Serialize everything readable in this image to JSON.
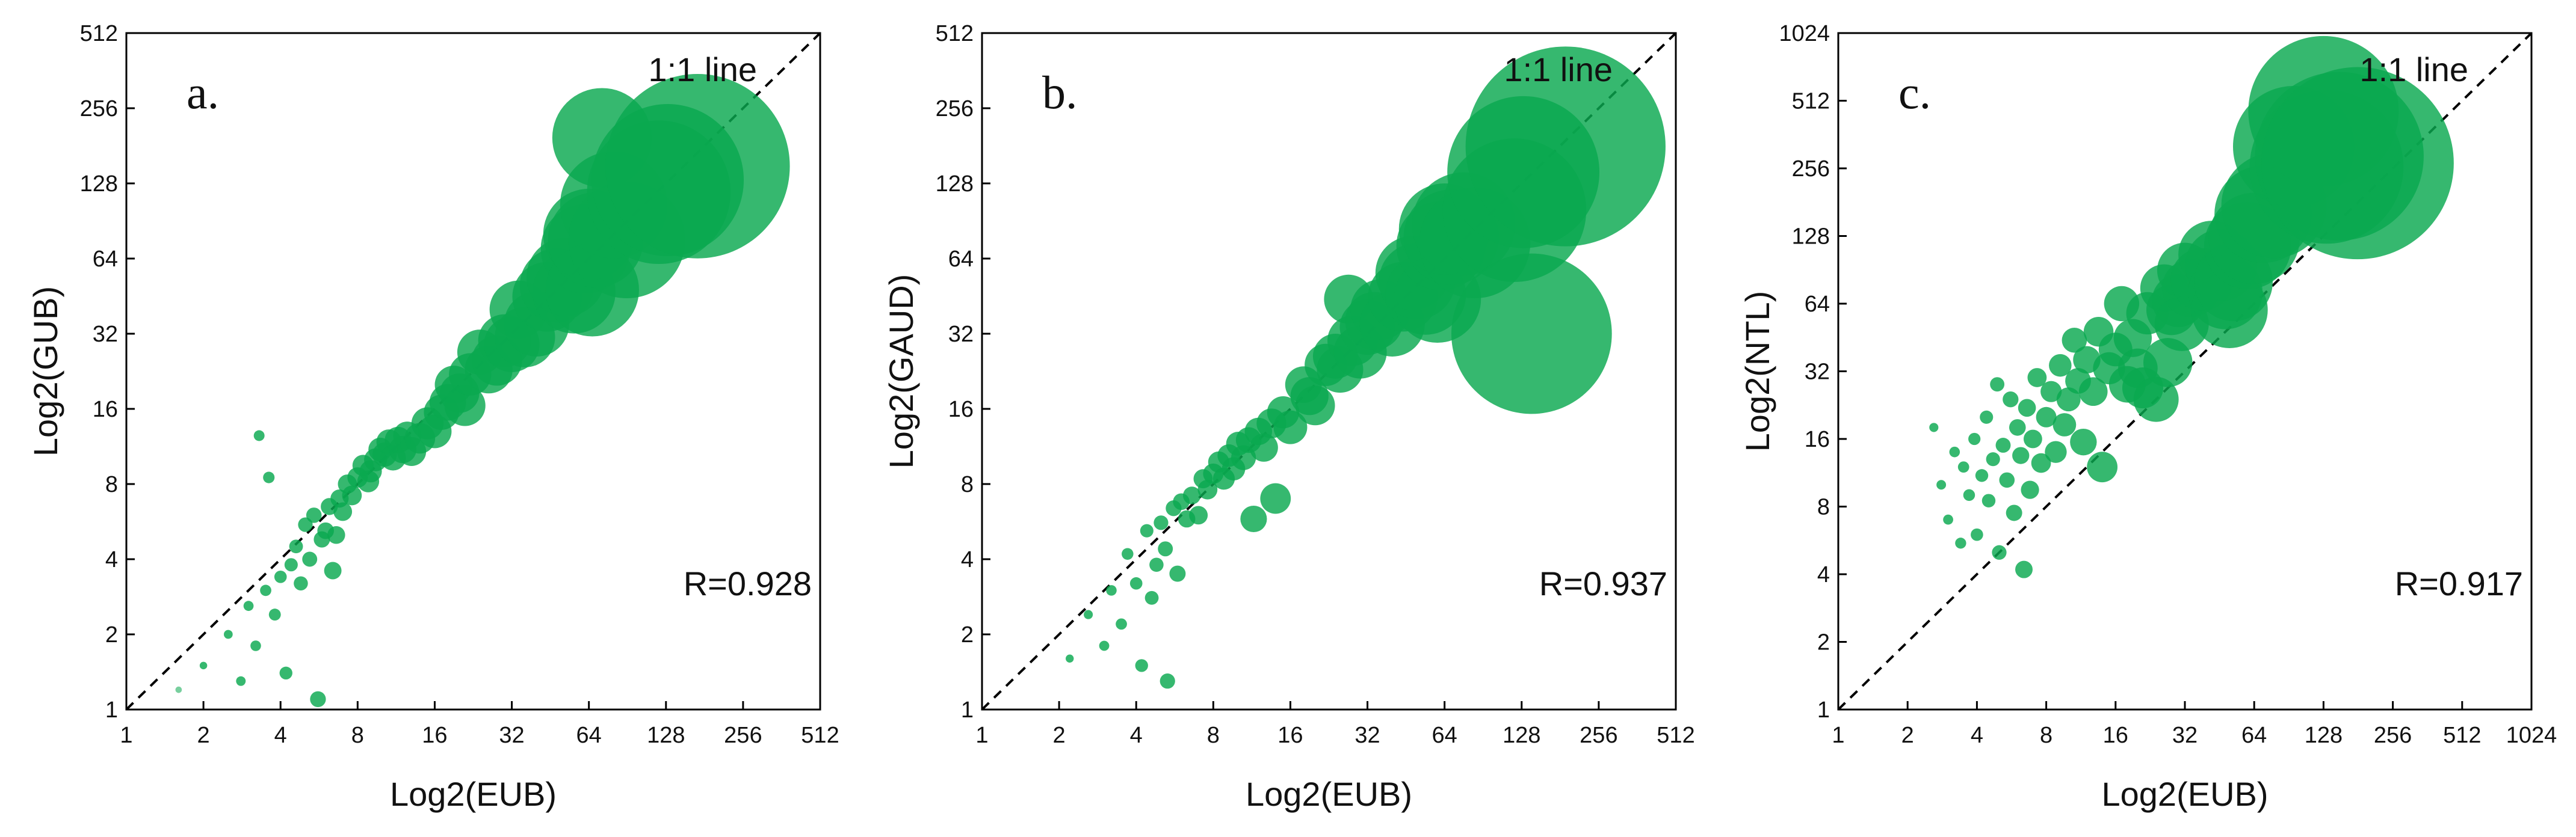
{
  "colors": {
    "point": "#0aa84f",
    "axis": "#000000",
    "ref_line": "#000000",
    "background": "#ffffff"
  },
  "chart_data": [
    {
      "type": "scatter",
      "panel_label": "a.",
      "title": "",
      "xlabel": "Log2(EUB)",
      "ylabel": "Log2(GUB)",
      "xscale": "log2",
      "yscale": "log2",
      "xlim": [
        1,
        512
      ],
      "ylim": [
        1,
        512
      ],
      "xticks": [
        "1",
        "2",
        "4",
        "8",
        "16",
        "32",
        "64",
        "128",
        "256",
        "512"
      ],
      "yticks": [
        "1",
        "2",
        "4",
        "8",
        "16",
        "32",
        "64",
        "128",
        "256",
        "512"
      ],
      "reference_line_label": "1:1 line",
      "correlation_text": "R=0.928",
      "point_size_encodes": "EUB",
      "points": [
        [
          1.6,
          1.2
        ],
        [
          2.0,
          1.5
        ],
        [
          2.5,
          2.0
        ],
        [
          2.8,
          1.3
        ],
        [
          3.0,
          2.6
        ],
        [
          3.3,
          12.5
        ],
        [
          3.2,
          1.8
        ],
        [
          3.5,
          3.0
        ],
        [
          3.6,
          8.5
        ],
        [
          3.8,
          2.4
        ],
        [
          4.0,
          3.4
        ],
        [
          4.2,
          1.4
        ],
        [
          4.4,
          3.8
        ],
        [
          4.6,
          4.5
        ],
        [
          4.8,
          3.2
        ],
        [
          5.0,
          5.5
        ],
        [
          5.2,
          4.0
        ],
        [
          5.4,
          6.0
        ],
        [
          5.6,
          1.1
        ],
        [
          5.8,
          4.8
        ],
        [
          6.0,
          5.2
        ],
        [
          6.2,
          6.5
        ],
        [
          6.4,
          3.6
        ],
        [
          6.6,
          5.0
        ],
        [
          6.8,
          7.0
        ],
        [
          7.0,
          6.2
        ],
        [
          7.3,
          8.0
        ],
        [
          7.6,
          7.2
        ],
        [
          8.0,
          8.5
        ],
        [
          8.4,
          9.5
        ],
        [
          8.8,
          8.2
        ],
        [
          9.0,
          9.0
        ],
        [
          9.4,
          10.0
        ],
        [
          9.8,
          11.0
        ],
        [
          10.2,
          10.5
        ],
        [
          10.6,
          11.8
        ],
        [
          11.0,
          10.2
        ],
        [
          11.5,
          12.0
        ],
        [
          12.0,
          11.0
        ],
        [
          12.5,
          12.5
        ],
        [
          13.0,
          10.8
        ],
        [
          14.0,
          12.2
        ],
        [
          15.0,
          14.0
        ],
        [
          16.0,
          13.0
        ],
        [
          17.0,
          15.5
        ],
        [
          18.0,
          17.0
        ],
        [
          19.0,
          20.0
        ],
        [
          20.0,
          18.5
        ],
        [
          21.0,
          16.5
        ],
        [
          22.0,
          22.0
        ],
        [
          24.0,
          27.0
        ],
        [
          26.0,
          23.0
        ],
        [
          28.0,
          25.0
        ],
        [
          30.0,
          30.0
        ],
        [
          32.0,
          29.0
        ],
        [
          34.0,
          40.0
        ],
        [
          36.0,
          31.0
        ],
        [
          40.0,
          35.0
        ],
        [
          44.0,
          45.0
        ],
        [
          48.0,
          50.0
        ],
        [
          52.0,
          54.0
        ],
        [
          56.0,
          47.0
        ],
        [
          62.0,
          70.0
        ],
        [
          64.0,
          80.0
        ],
        [
          66.0,
          48.0
        ],
        [
          68.0,
          76.0
        ],
        [
          72.0,
          195.0
        ],
        [
          80.0,
          105.0
        ],
        [
          90.0,
          76.0
        ],
        [
          120.0,
          118.0
        ],
        [
          130.0,
          132.0
        ],
        [
          170.0,
          150.0
        ]
      ]
    },
    {
      "type": "scatter",
      "panel_label": "b.",
      "title": "",
      "xlabel": "Log2(EUB)",
      "ylabel": "Log2(GAUD)",
      "xscale": "log2",
      "yscale": "log2",
      "xlim": [
        1,
        512
      ],
      "ylim": [
        1,
        512
      ],
      "xticks": [
        "1",
        "2",
        "4",
        "8",
        "16",
        "32",
        "64",
        "128",
        "256",
        "512"
      ],
      "yticks": [
        "1",
        "2",
        "4",
        "8",
        "16",
        "32",
        "64",
        "128",
        "256",
        "512"
      ],
      "reference_line_label": "1:1 line",
      "correlation_text": "R=0.937",
      "point_size_encodes": "EUB",
      "points": [
        [
          2.2,
          1.6
        ],
        [
          2.6,
          2.4
        ],
        [
          3.0,
          1.8
        ],
        [
          3.2,
          3.0
        ],
        [
          3.5,
          2.2
        ],
        [
          3.7,
          4.2
        ],
        [
          4.0,
          3.2
        ],
        [
          4.2,
          1.5
        ],
        [
          4.4,
          5.2
        ],
        [
          4.6,
          2.8
        ],
        [
          4.8,
          3.8
        ],
        [
          5.0,
          5.6
        ],
        [
          5.2,
          4.4
        ],
        [
          5.3,
          1.3
        ],
        [
          5.6,
          6.4
        ],
        [
          5.8,
          3.5
        ],
        [
          6.0,
          6.8
        ],
        [
          6.3,
          5.8
        ],
        [
          6.6,
          7.2
        ],
        [
          7.0,
          6.0
        ],
        [
          7.3,
          8.4
        ],
        [
          7.6,
          7.6
        ],
        [
          8.0,
          8.8
        ],
        [
          8.4,
          9.8
        ],
        [
          8.8,
          8.4
        ],
        [
          9.2,
          10.4
        ],
        [
          9.6,
          9.2
        ],
        [
          10.0,
          11.6
        ],
        [
          10.5,
          10.2
        ],
        [
          11.0,
          12.0
        ],
        [
          11.5,
          5.8
        ],
        [
          12.0,
          13.0
        ],
        [
          12.6,
          11.2
        ],
        [
          13.5,
          14.0
        ],
        [
          14.0,
          7.0
        ],
        [
          15.0,
          15.5
        ],
        [
          16.0,
          13.5
        ],
        [
          18.0,
          20.0
        ],
        [
          19.0,
          18.0
        ],
        [
          20.0,
          16.5
        ],
        [
          22.0,
          24.0
        ],
        [
          24.0,
          26.0
        ],
        [
          25.0,
          23.0
        ],
        [
          27.0,
          44.0
        ],
        [
          28.0,
          30.0
        ],
        [
          30.0,
          27.0
        ],
        [
          32.0,
          34.0
        ],
        [
          34.0,
          36.0
        ],
        [
          36.0,
          40.0
        ],
        [
          40.0,
          35.0
        ],
        [
          44.0,
          45.0
        ],
        [
          48.0,
          56.0
        ],
        [
          50.0,
          52.0
        ],
        [
          54.0,
          46.0
        ],
        [
          60.0,
          44.0
        ],
        [
          62.0,
          72.0
        ],
        [
          64.0,
          84.0
        ],
        [
          68.0,
          78.0
        ],
        [
          76.0,
          88.0
        ],
        [
          84.0,
          74.0
        ],
        [
          120.0,
          100.0
        ],
        [
          130.0,
          142.0
        ],
        [
          140.0,
          32.0
        ],
        [
          190.0,
          180.0
        ]
      ]
    },
    {
      "type": "scatter",
      "panel_label": "c.",
      "title": "",
      "xlabel": "Log2(EUB)",
      "ylabel": "Log2(NTL)",
      "xscale": "log2",
      "yscale": "log2",
      "xlim": [
        1,
        1024
      ],
      "ylim": [
        1,
        1024
      ],
      "xticks": [
        "1",
        "2",
        "4",
        "8",
        "16",
        "32",
        "64",
        "128",
        "256",
        "512",
        "1024"
      ],
      "yticks": [
        "1",
        "2",
        "4",
        "8",
        "16",
        "32",
        "64",
        "128",
        "256",
        "512",
        "1024"
      ],
      "reference_line_label": "1:1 line",
      "correlation_text": "R=0.917",
      "point_size_encodes": "EUB",
      "points": [
        [
          2.6,
          18.0
        ],
        [
          2.8,
          10.0
        ],
        [
          3.0,
          7.0
        ],
        [
          3.2,
          14.0
        ],
        [
          3.4,
          5.5
        ],
        [
          3.5,
          12.0
        ],
        [
          3.7,
          9.0
        ],
        [
          3.9,
          16.0
        ],
        [
          4.0,
          6.0
        ],
        [
          4.2,
          11.0
        ],
        [
          4.4,
          20.0
        ],
        [
          4.5,
          8.5
        ],
        [
          4.7,
          13.0
        ],
        [
          4.9,
          28.0
        ],
        [
          5.0,
          5.0
        ],
        [
          5.2,
          15.0
        ],
        [
          5.4,
          10.5
        ],
        [
          5.6,
          24.0
        ],
        [
          5.8,
          7.5
        ],
        [
          6.0,
          18.0
        ],
        [
          6.2,
          13.5
        ],
        [
          6.4,
          4.2
        ],
        [
          6.6,
          22.0
        ],
        [
          6.8,
          9.5
        ],
        [
          7.0,
          16.0
        ],
        [
          7.3,
          30.0
        ],
        [
          7.6,
          12.5
        ],
        [
          8.0,
          20.0
        ],
        [
          8.4,
          26.0
        ],
        [
          8.8,
          14.0
        ],
        [
          9.2,
          34.0
        ],
        [
          9.6,
          18.5
        ],
        [
          10.0,
          24.0
        ],
        [
          10.6,
          44.0
        ],
        [
          11.0,
          29.0
        ],
        [
          11.6,
          15.5
        ],
        [
          12.0,
          36.0
        ],
        [
          12.8,
          26.0
        ],
        [
          13.5,
          48.0
        ],
        [
          14.0,
          12.0
        ],
        [
          15.0,
          33.0
        ],
        [
          16.0,
          40.0
        ],
        [
          17.0,
          64.0
        ],
        [
          18.0,
          28.0
        ],
        [
          19.0,
          45.0
        ],
        [
          20.0,
          33.0
        ],
        [
          21.0,
          27.0
        ],
        [
          22.0,
          58.0
        ],
        [
          24.0,
          24.0
        ],
        [
          26.0,
          75.0
        ],
        [
          27.0,
          35.0
        ],
        [
          28.0,
          60.0
        ],
        [
          30.0,
          66.0
        ],
        [
          31.0,
          52.0
        ],
        [
          32.0,
          90.0
        ],
        [
          34.0,
          75.0
        ],
        [
          38.0,
          82.0
        ],
        [
          42.0,
          106.0
        ],
        [
          46.0,
          95.0
        ],
        [
          48.0,
          72.0
        ],
        [
          50.0,
          60.0
        ],
        [
          52.0,
          80.0
        ],
        [
          60.0,
          116.0
        ],
        [
          64.0,
          125.0
        ],
        [
          70.0,
          160.0
        ],
        [
          78.0,
          175.0
        ],
        [
          95.0,
          320.0
        ],
        [
          128.0,
          460.0
        ],
        [
          132.0,
          260.0
        ],
        [
          150.0,
          290.0
        ],
        [
          180.0,
          270.0
        ]
      ]
    }
  ]
}
